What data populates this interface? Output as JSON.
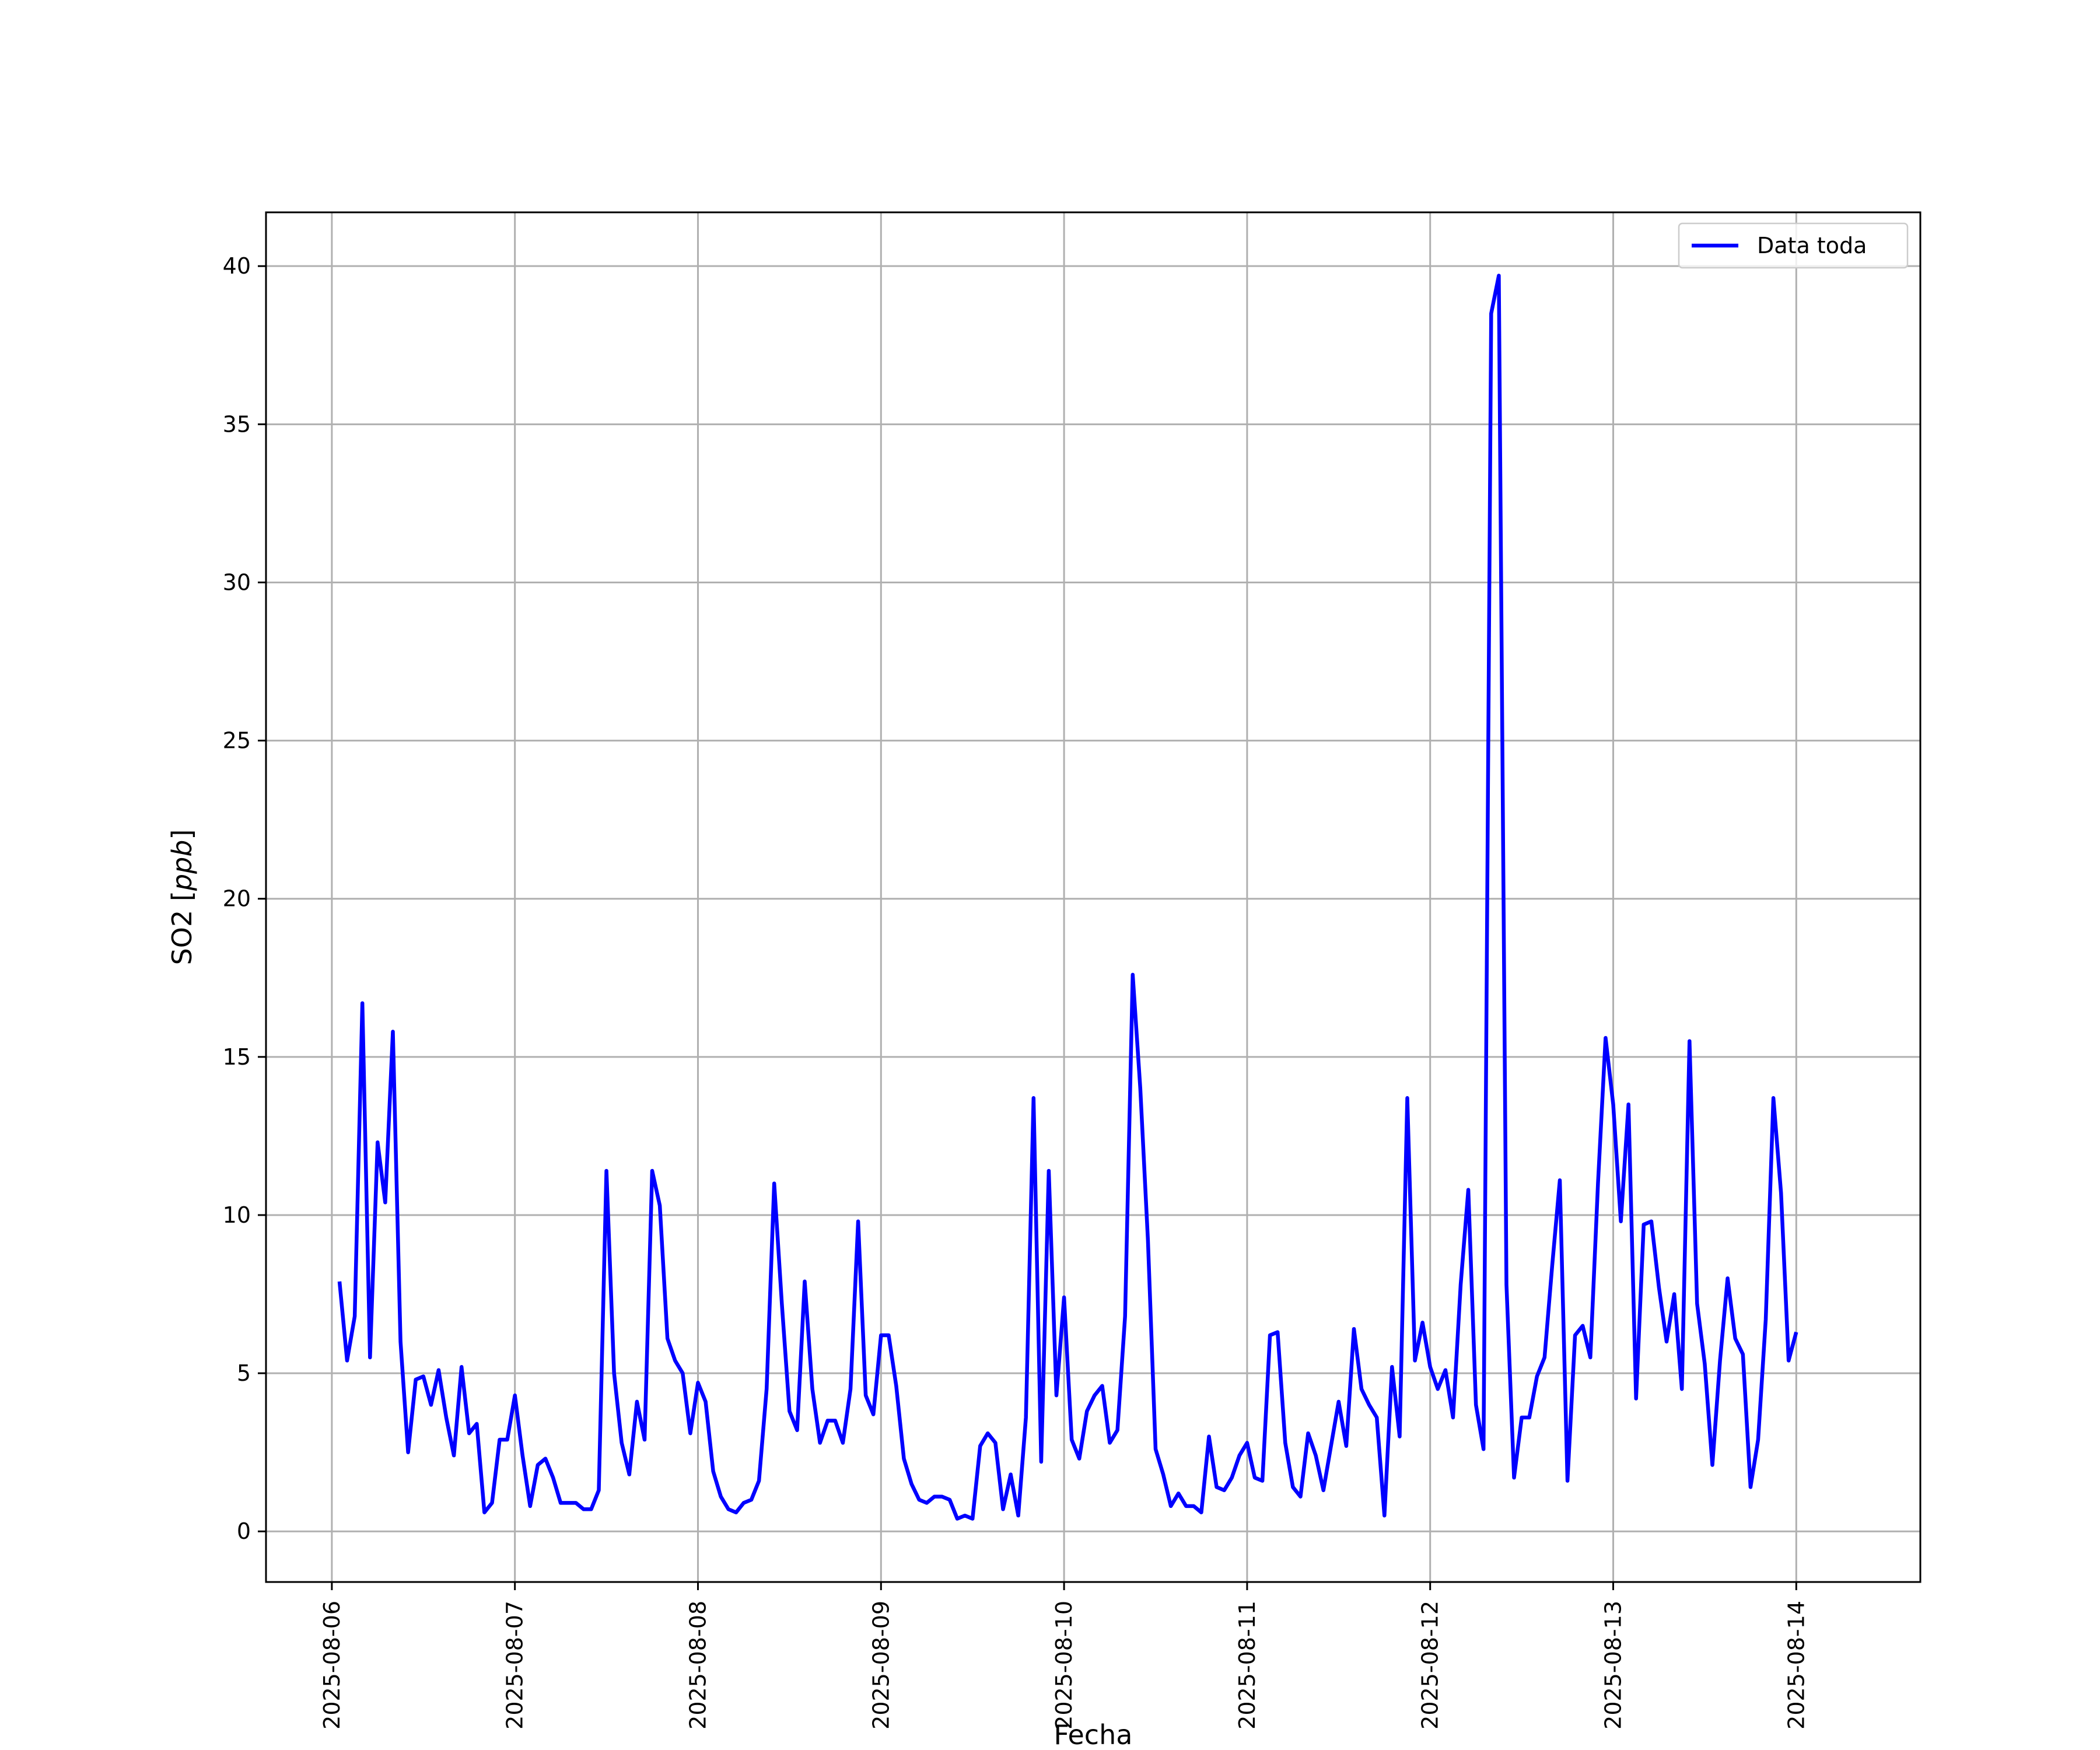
{
  "chart_data": {
    "type": "line",
    "title": "",
    "xlabel": "Fecha",
    "ylabel_main": "SO2 ",
    "ylabel_unit": "[ppb]",
    "ylabel_unit_var": "ppb",
    "ylim": [
      -1.6,
      41.7
    ],
    "yticks": [
      0,
      5,
      10,
      15,
      20,
      25,
      30,
      35,
      40
    ],
    "xlim": [
      "2025-08-05 15:22",
      "2025-08-14 16:16"
    ],
    "xticks": [
      "2025-08-06",
      "2025-08-07",
      "2025-08-08",
      "2025-08-09",
      "2025-08-10",
      "2025-08-11",
      "2025-08-12",
      "2025-08-13",
      "2025-08-14"
    ],
    "grid": true,
    "legend_position": "upper right",
    "series": [
      {
        "name": "Data toda",
        "color": "#0000ff",
        "x": [
          "2025-08-06 01:00",
          "2025-08-06 02:00",
          "2025-08-06 03:00",
          "2025-08-06 04:00",
          "2025-08-06 05:00",
          "2025-08-06 06:00",
          "2025-08-06 07:00",
          "2025-08-06 08:00",
          "2025-08-06 09:00",
          "2025-08-06 10:00",
          "2025-08-06 11:00",
          "2025-08-06 12:00",
          "2025-08-06 13:00",
          "2025-08-06 14:00",
          "2025-08-06 15:00",
          "2025-08-06 16:00",
          "2025-08-06 17:00",
          "2025-08-06 18:00",
          "2025-08-06 19:00",
          "2025-08-06 20:00",
          "2025-08-06 21:00",
          "2025-08-06 22:00",
          "2025-08-06 23:00",
          "2025-08-07 00:00",
          "2025-08-07 01:00",
          "2025-08-07 02:00",
          "2025-08-07 03:00",
          "2025-08-07 04:00",
          "2025-08-07 05:00",
          "2025-08-07 06:00",
          "2025-08-07 07:00",
          "2025-08-07 08:00",
          "2025-08-07 09:00",
          "2025-08-07 10:00",
          "2025-08-07 11:00",
          "2025-08-07 12:00",
          "2025-08-07 13:00",
          "2025-08-07 14:00",
          "2025-08-07 15:00",
          "2025-08-07 16:00",
          "2025-08-07 17:00",
          "2025-08-07 18:00",
          "2025-08-07 19:00",
          "2025-08-07 20:00",
          "2025-08-07 21:00",
          "2025-08-07 22:00",
          "2025-08-07 23:00",
          "2025-08-08 00:00",
          "2025-08-08 01:00",
          "2025-08-08 02:00",
          "2025-08-08 03:00",
          "2025-08-08 04:00",
          "2025-08-08 05:00",
          "2025-08-08 06:00",
          "2025-08-08 07:00",
          "2025-08-08 08:00",
          "2025-08-08 09:00",
          "2025-08-08 10:00",
          "2025-08-08 11:00",
          "2025-08-08 12:00",
          "2025-08-08 13:00",
          "2025-08-08 14:00",
          "2025-08-08 15:00",
          "2025-08-08 16:00",
          "2025-08-08 17:00",
          "2025-08-08 18:00",
          "2025-08-08 19:00",
          "2025-08-08 20:00",
          "2025-08-08 21:00",
          "2025-08-08 22:00",
          "2025-08-08 23:00",
          "2025-08-09 00:00",
          "2025-08-09 01:00",
          "2025-08-09 02:00",
          "2025-08-09 03:00",
          "2025-08-09 04:00",
          "2025-08-09 05:00",
          "2025-08-09 06:00",
          "2025-08-09 07:00",
          "2025-08-09 08:00",
          "2025-08-09 09:00",
          "2025-08-09 10:00",
          "2025-08-09 11:00",
          "2025-08-09 12:00",
          "2025-08-09 13:00",
          "2025-08-09 14:00",
          "2025-08-09 15:00",
          "2025-08-09 16:00",
          "2025-08-09 17:00",
          "2025-08-09 18:00",
          "2025-08-09 19:00",
          "2025-08-09 20:00",
          "2025-08-09 21:00",
          "2025-08-09 22:00",
          "2025-08-09 23:00",
          "2025-08-10 00:00",
          "2025-08-10 01:00",
          "2025-08-10 02:00",
          "2025-08-10 03:00",
          "2025-08-10 04:00",
          "2025-08-10 05:00",
          "2025-08-10 06:00",
          "2025-08-10 07:00",
          "2025-08-10 08:00",
          "2025-08-10 09:00",
          "2025-08-10 10:00",
          "2025-08-10 11:00",
          "2025-08-10 12:00",
          "2025-08-10 13:00",
          "2025-08-10 14:00",
          "2025-08-10 15:00",
          "2025-08-10 16:00",
          "2025-08-10 17:00",
          "2025-08-10 18:00",
          "2025-08-10 19:00",
          "2025-08-10 20:00",
          "2025-08-10 21:00",
          "2025-08-10 22:00",
          "2025-08-10 23:00",
          "2025-08-11 00:00",
          "2025-08-11 01:00",
          "2025-08-11 02:00",
          "2025-08-11 03:00",
          "2025-08-11 04:00",
          "2025-08-11 05:00",
          "2025-08-11 06:00",
          "2025-08-11 07:00",
          "2025-08-11 08:00",
          "2025-08-11 09:00",
          "2025-08-11 10:00",
          "2025-08-11 11:00",
          "2025-08-11 12:00",
          "2025-08-11 13:00",
          "2025-08-11 14:00",
          "2025-08-11 15:00",
          "2025-08-11 16:00",
          "2025-08-11 17:00",
          "2025-08-11 18:00",
          "2025-08-11 19:00",
          "2025-08-11 20:00",
          "2025-08-11 21:00",
          "2025-08-11 22:00",
          "2025-08-11 23:00",
          "2025-08-12 00:00",
          "2025-08-12 01:00",
          "2025-08-12 02:00",
          "2025-08-12 03:00",
          "2025-08-12 04:00",
          "2025-08-12 05:00",
          "2025-08-12 06:00",
          "2025-08-12 07:00",
          "2025-08-12 08:00",
          "2025-08-12 09:00",
          "2025-08-12 10:00",
          "2025-08-12 11:00",
          "2025-08-12 12:00",
          "2025-08-12 13:00",
          "2025-08-12 14:00",
          "2025-08-12 15:00",
          "2025-08-12 16:00",
          "2025-08-12 17:00",
          "2025-08-12 18:00",
          "2025-08-12 19:00",
          "2025-08-12 20:00",
          "2025-08-12 21:00",
          "2025-08-12 22:00",
          "2025-08-12 23:00",
          "2025-08-13 00:00",
          "2025-08-13 01:00",
          "2025-08-13 02:00",
          "2025-08-13 03:00",
          "2025-08-13 04:00",
          "2025-08-13 05:00",
          "2025-08-13 06:00",
          "2025-08-13 07:00",
          "2025-08-13 08:00",
          "2025-08-13 09:00",
          "2025-08-13 10:00",
          "2025-08-13 11:00",
          "2025-08-13 12:00",
          "2025-08-13 13:00",
          "2025-08-13 14:00",
          "2025-08-13 15:00",
          "2025-08-13 16:00",
          "2025-08-13 17:00",
          "2025-08-13 18:00",
          "2025-08-13 19:00",
          "2025-08-13 20:00",
          "2025-08-13 21:00",
          "2025-08-13 22:00",
          "2025-08-13 23:00",
          "2025-08-14 00:00"
        ],
        "y": [
          7.9,
          5.4,
          6.8,
          16.7,
          5.5,
          12.3,
          10.4,
          15.8,
          6.0,
          2.5,
          4.8,
          4.9,
          4.0,
          5.1,
          3.6,
          2.4,
          5.2,
          3.1,
          3.4,
          0.6,
          0.9,
          2.9,
          2.9,
          4.3,
          2.4,
          0.8,
          2.1,
          2.3,
          1.7,
          0.9,
          0.9,
          0.9,
          0.7,
          0.7,
          1.3,
          11.4,
          5.0,
          2.8,
          1.8,
          4.1,
          2.9,
          11.4,
          10.3,
          6.1,
          5.4,
          5.0,
          3.1,
          4.7,
          4.1,
          1.9,
          1.1,
          0.7,
          0.6,
          0.9,
          1.0,
          1.6,
          4.5,
          11.0,
          7.2,
          3.8,
          3.2,
          7.9,
          4.5,
          2.8,
          3.5,
          3.5,
          2.8,
          4.5,
          9.8,
          4.3,
          3.7,
          6.2,
          6.2,
          4.6,
          2.3,
          1.5,
          1.0,
          0.9,
          1.1,
          1.1,
          1.0,
          0.4,
          0.5,
          0.4,
          2.7,
          3.1,
          2.8,
          0.7,
          1.8,
          0.5,
          3.6,
          13.7,
          2.2,
          11.4,
          4.3,
          7.4,
          2.9,
          2.3,
          3.8,
          4.3,
          4.6,
          2.8,
          3.2,
          6.8,
          17.6,
          14.0,
          9.2,
          2.6,
          1.8,
          0.8,
          1.2,
          0.8,
          0.8,
          0.6,
          3.0,
          1.4,
          1.3,
          1.7,
          2.4,
          2.8,
          1.7,
          1.6,
          6.2,
          6.3,
          2.8,
          1.4,
          1.1,
          3.1,
          2.4,
          1.3,
          2.7,
          4.1,
          2.7,
          6.4,
          4.5,
          4.0,
          3.6,
          0.5,
          5.2,
          3.0,
          13.7,
          5.4,
          6.6,
          5.2,
          4.5,
          5.1,
          3.6,
          7.8,
          10.8,
          4.0,
          2.6,
          38.5,
          39.7,
          7.8,
          1.7,
          3.6,
          3.6,
          4.9,
          5.5,
          8.4,
          11.1,
          1.6,
          6.2,
          6.5,
          5.5,
          11.0,
          15.6,
          13.5,
          9.8,
          13.5,
          4.2,
          9.7,
          9.8,
          7.7,
          6.0,
          7.5,
          4.5,
          15.5,
          7.2,
          5.3,
          2.1,
          5.4,
          8.0,
          6.1,
          5.6,
          1.4,
          2.9,
          6.7,
          13.7,
          10.7,
          5.4,
          6.3
        ]
      }
    ]
  }
}
